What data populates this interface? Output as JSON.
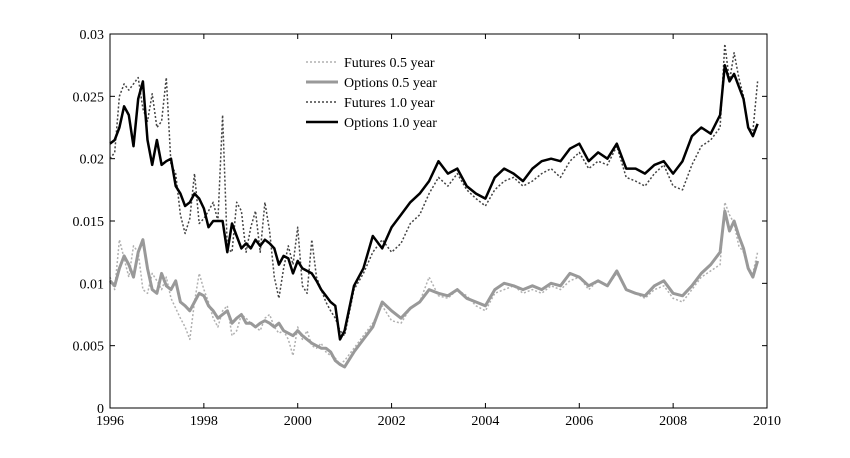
{
  "chart_data": {
    "type": "line",
    "title": "",
    "xlabel": "",
    "ylabel": "",
    "xlim": [
      1996,
      2010
    ],
    "ylim": [
      0,
      0.03
    ],
    "xticks": [
      "1996",
      "1998",
      "2000",
      "2002",
      "2004",
      "2006",
      "2008",
      "2010"
    ],
    "yticks": [
      "0",
      "0.005",
      "0.01",
      "0.015",
      "0.02",
      "0.025",
      "0.03"
    ],
    "grid": false,
    "legend_position": "top-center",
    "series": [
      {
        "name": "Futures 0.5 year",
        "color": "#b0b0b0",
        "dash": "2,2",
        "width": 1.5,
        "x": [
          1996.0,
          1996.1,
          1996.2,
          1996.3,
          1996.4,
          1996.5,
          1996.6,
          1996.7,
          1996.8,
          1996.9,
          1997.0,
          1997.1,
          1997.2,
          1997.3,
          1997.4,
          1997.5,
          1997.6,
          1997.7,
          1997.8,
          1997.9,
          1998.0,
          1998.1,
          1998.2,
          1998.3,
          1998.4,
          1998.5,
          1998.6,
          1998.7,
          1998.8,
          1998.9,
          1999.0,
          1999.1,
          1999.2,
          1999.3,
          1999.4,
          1999.5,
          1999.6,
          1999.7,
          1999.8,
          1999.9,
          2000.0,
          2000.1,
          2000.2,
          2000.3,
          2000.4,
          2000.5,
          2000.6,
          2000.7,
          2000.8,
          2000.9,
          2001.0,
          2001.2,
          2001.4,
          2001.6,
          2001.8,
          2002.0,
          2002.2,
          2002.4,
          2002.6,
          2002.8,
          2003.0,
          2003.2,
          2003.4,
          2003.6,
          2003.8,
          2004.0,
          2004.2,
          2004.4,
          2004.6,
          2004.8,
          2005.0,
          2005.2,
          2005.4,
          2005.6,
          2005.8,
          2006.0,
          2006.2,
          2006.4,
          2006.6,
          2006.8,
          2007.0,
          2007.2,
          2007.4,
          2007.6,
          2007.8,
          2008.0,
          2008.2,
          2008.4,
          2008.6,
          2008.8,
          2009.0,
          2009.1,
          2009.2,
          2009.3,
          2009.4,
          2009.5,
          2009.6,
          2009.7,
          2009.8
        ],
        "y": [
          0.0105,
          0.0095,
          0.0135,
          0.012,
          0.0105,
          0.013,
          0.0125,
          0.0095,
          0.0092,
          0.0108,
          0.0102,
          0.0095,
          0.0105,
          0.0088,
          0.008,
          0.0072,
          0.0065,
          0.0055,
          0.0085,
          0.0108,
          0.0095,
          0.0085,
          0.0072,
          0.0065,
          0.0078,
          0.0082,
          0.0058,
          0.0062,
          0.0075,
          0.0072,
          0.0068,
          0.0065,
          0.0062,
          0.0072,
          0.0075,
          0.0065,
          0.006,
          0.0062,
          0.0055,
          0.0042,
          0.0065,
          0.0055,
          0.0062,
          0.005,
          0.0048,
          0.0052,
          0.0045,
          0.0042,
          0.004,
          0.0035,
          0.0038,
          0.0048,
          0.0058,
          0.0068,
          0.0082,
          0.007,
          0.0068,
          0.008,
          0.0085,
          0.0105,
          0.009,
          0.0088,
          0.0095,
          0.009,
          0.0082,
          0.0078,
          0.0092,
          0.0095,
          0.0098,
          0.0092,
          0.0095,
          0.0092,
          0.0098,
          0.0095,
          0.0102,
          0.0105,
          0.0095,
          0.0102,
          0.0098,
          0.0108,
          0.0095,
          0.0092,
          0.0088,
          0.0095,
          0.0098,
          0.0088,
          0.0085,
          0.0095,
          0.0105,
          0.011,
          0.0115,
          0.0165,
          0.0155,
          0.0148,
          0.013,
          0.0125,
          0.0112,
          0.0108,
          0.0125
        ]
      },
      {
        "name": "Options 0.5 year",
        "color": "#999999",
        "dash": "",
        "width": 3,
        "x": [
          1996.0,
          1996.1,
          1996.2,
          1996.3,
          1996.4,
          1996.5,
          1996.6,
          1996.7,
          1996.8,
          1996.9,
          1997.0,
          1997.1,
          1997.2,
          1997.3,
          1997.4,
          1997.5,
          1997.6,
          1997.7,
          1997.8,
          1997.9,
          1998.0,
          1998.1,
          1998.2,
          1998.3,
          1998.4,
          1998.5,
          1998.6,
          1998.7,
          1998.8,
          1998.9,
          1999.0,
          1999.1,
          1999.2,
          1999.3,
          1999.4,
          1999.5,
          1999.6,
          1999.7,
          1999.8,
          1999.9,
          2000.0,
          2000.1,
          2000.2,
          2000.3,
          2000.4,
          2000.5,
          2000.6,
          2000.7,
          2000.8,
          2000.9,
          2001.0,
          2001.2,
          2001.4,
          2001.6,
          2001.8,
          2002.0,
          2002.2,
          2002.4,
          2002.6,
          2002.8,
          2003.0,
          2003.2,
          2003.4,
          2003.6,
          2003.8,
          2004.0,
          2004.2,
          2004.4,
          2004.6,
          2004.8,
          2005.0,
          2005.2,
          2005.4,
          2005.6,
          2005.8,
          2006.0,
          2006.2,
          2006.4,
          2006.6,
          2006.8,
          2007.0,
          2007.2,
          2007.4,
          2007.6,
          2007.8,
          2008.0,
          2008.2,
          2008.4,
          2008.6,
          2008.8,
          2009.0,
          2009.1,
          2009.2,
          2009.3,
          2009.4,
          2009.5,
          2009.6,
          2009.7,
          2009.8
        ],
        "y": [
          0.0102,
          0.0098,
          0.0112,
          0.0122,
          0.0115,
          0.0105,
          0.0125,
          0.0135,
          0.0112,
          0.0095,
          0.0092,
          0.0108,
          0.0098,
          0.0095,
          0.0102,
          0.0085,
          0.0082,
          0.0078,
          0.0085,
          0.0092,
          0.009,
          0.0082,
          0.0078,
          0.0072,
          0.0075,
          0.0078,
          0.0068,
          0.0072,
          0.0075,
          0.0068,
          0.0068,
          0.0065,
          0.0068,
          0.007,
          0.0068,
          0.0065,
          0.0068,
          0.0062,
          0.006,
          0.0058,
          0.0062,
          0.0058,
          0.0055,
          0.0052,
          0.005,
          0.0048,
          0.0048,
          0.0045,
          0.0038,
          0.0035,
          0.0033,
          0.0045,
          0.0055,
          0.0065,
          0.0085,
          0.0078,
          0.0072,
          0.008,
          0.0085,
          0.0095,
          0.0092,
          0.009,
          0.0095,
          0.0088,
          0.0085,
          0.0082,
          0.0095,
          0.01,
          0.0098,
          0.0095,
          0.0098,
          0.0095,
          0.01,
          0.0098,
          0.0108,
          0.0105,
          0.0098,
          0.0102,
          0.0098,
          0.011,
          0.0095,
          0.0092,
          0.009,
          0.0098,
          0.0102,
          0.0092,
          0.009,
          0.0098,
          0.0108,
          0.0115,
          0.0125,
          0.0158,
          0.0142,
          0.015,
          0.0138,
          0.0128,
          0.0112,
          0.0105,
          0.0118
        ]
      },
      {
        "name": "Futures 1.0 year",
        "color": "#444444",
        "dash": "2,2",
        "width": 1.5,
        "x": [
          1996.0,
          1996.1,
          1996.2,
          1996.3,
          1996.4,
          1996.5,
          1996.6,
          1996.7,
          1996.8,
          1996.9,
          1997.0,
          1997.1,
          1997.2,
          1997.3,
          1997.4,
          1997.5,
          1997.6,
          1997.7,
          1997.8,
          1997.9,
          1998.0,
          1998.1,
          1998.2,
          1998.3,
          1998.4,
          1998.5,
          1998.6,
          1998.7,
          1998.8,
          1998.9,
          1999.0,
          1999.1,
          1999.2,
          1999.3,
          1999.4,
          1999.5,
          1999.6,
          1999.7,
          1999.8,
          1999.9,
          2000.0,
          2000.1,
          2000.2,
          2000.3,
          2000.4,
          2000.5,
          2000.6,
          2000.7,
          2000.8,
          2000.9,
          2001.0,
          2001.2,
          2001.4,
          2001.6,
          2001.8,
          2002.0,
          2002.2,
          2002.4,
          2002.6,
          2002.8,
          2003.0,
          2003.2,
          2003.4,
          2003.6,
          2003.8,
          2004.0,
          2004.2,
          2004.4,
          2004.6,
          2004.8,
          2005.0,
          2005.2,
          2005.4,
          2005.6,
          2005.8,
          2006.0,
          2006.2,
          2006.4,
          2006.6,
          2006.8,
          2007.0,
          2007.2,
          2007.4,
          2007.6,
          2007.8,
          2008.0,
          2008.2,
          2008.4,
          2008.6,
          2008.8,
          2009.0,
          2009.1,
          2009.2,
          2009.3,
          2009.4,
          2009.5,
          2009.6,
          2009.7,
          2009.8
        ],
        "y": [
          0.02,
          0.0205,
          0.025,
          0.026,
          0.0255,
          0.026,
          0.0265,
          0.024,
          0.023,
          0.0252,
          0.0225,
          0.023,
          0.0265,
          0.0195,
          0.0188,
          0.0155,
          0.014,
          0.0152,
          0.0188,
          0.0148,
          0.0152,
          0.0158,
          0.0165,
          0.015,
          0.0235,
          0.0128,
          0.0125,
          0.0165,
          0.0158,
          0.0125,
          0.0145,
          0.0158,
          0.0125,
          0.0165,
          0.0142,
          0.0105,
          0.0088,
          0.0112,
          0.013,
          0.0115,
          0.0145,
          0.0098,
          0.0092,
          0.0135,
          0.0105,
          0.0095,
          0.0085,
          0.0078,
          0.0072,
          0.0062,
          0.0058,
          0.0095,
          0.0108,
          0.0125,
          0.0135,
          0.0125,
          0.0132,
          0.0148,
          0.0155,
          0.0172,
          0.0185,
          0.0178,
          0.0188,
          0.0175,
          0.0168,
          0.0162,
          0.0175,
          0.0182,
          0.0185,
          0.0178,
          0.0182,
          0.0188,
          0.0192,
          0.0185,
          0.0198,
          0.0205,
          0.0192,
          0.0198,
          0.0195,
          0.021,
          0.0185,
          0.0182,
          0.0178,
          0.0188,
          0.0195,
          0.0178,
          0.0175,
          0.0195,
          0.021,
          0.0215,
          0.0225,
          0.0292,
          0.0262,
          0.0285,
          0.0265,
          0.025,
          0.0225,
          0.0222,
          0.0262
        ]
      },
      {
        "name": "Options 1.0 year",
        "color": "#000000",
        "dash": "",
        "width": 2.5,
        "x": [
          1996.0,
          1996.1,
          1996.2,
          1996.3,
          1996.4,
          1996.5,
          1996.6,
          1996.7,
          1996.8,
          1996.9,
          1997.0,
          1997.1,
          1997.2,
          1997.3,
          1997.4,
          1997.5,
          1997.6,
          1997.7,
          1997.8,
          1997.9,
          1998.0,
          1998.1,
          1998.2,
          1998.3,
          1998.4,
          1998.5,
          1998.6,
          1998.7,
          1998.8,
          1998.9,
          1999.0,
          1999.1,
          1999.2,
          1999.3,
          1999.4,
          1999.5,
          1999.6,
          1999.7,
          1999.8,
          1999.9,
          2000.0,
          2000.1,
          2000.2,
          2000.3,
          2000.4,
          2000.5,
          2000.6,
          2000.7,
          2000.8,
          2000.9,
          2001.0,
          2001.2,
          2001.4,
          2001.6,
          2001.8,
          2002.0,
          2002.2,
          2002.4,
          2002.6,
          2002.8,
          2003.0,
          2003.2,
          2003.4,
          2003.6,
          2003.8,
          2004.0,
          2004.2,
          2004.4,
          2004.6,
          2004.8,
          2005.0,
          2005.2,
          2005.4,
          2005.6,
          2005.8,
          2006.0,
          2006.2,
          2006.4,
          2006.6,
          2006.8,
          2007.0,
          2007.2,
          2007.4,
          2007.6,
          2007.8,
          2008.0,
          2008.2,
          2008.4,
          2008.6,
          2008.8,
          2009.0,
          2009.1,
          2009.2,
          2009.3,
          2009.4,
          2009.5,
          2009.6,
          2009.7,
          2009.8
        ],
        "y": [
          0.0212,
          0.0215,
          0.0225,
          0.0242,
          0.0235,
          0.021,
          0.0248,
          0.0262,
          0.0215,
          0.0195,
          0.0215,
          0.0195,
          0.0198,
          0.02,
          0.0178,
          0.0172,
          0.0162,
          0.0165,
          0.0172,
          0.0168,
          0.016,
          0.0145,
          0.015,
          0.015,
          0.015,
          0.0125,
          0.0148,
          0.0138,
          0.0128,
          0.0132,
          0.0128,
          0.0135,
          0.013,
          0.0135,
          0.0132,
          0.0128,
          0.0115,
          0.0122,
          0.012,
          0.0108,
          0.0118,
          0.0112,
          0.011,
          0.0108,
          0.0102,
          0.0095,
          0.009,
          0.0085,
          0.0082,
          0.0055,
          0.0062,
          0.0098,
          0.0112,
          0.0138,
          0.0128,
          0.0145,
          0.0155,
          0.0165,
          0.0172,
          0.0182,
          0.0198,
          0.0188,
          0.0192,
          0.0178,
          0.0172,
          0.0168,
          0.0185,
          0.0192,
          0.0188,
          0.0182,
          0.0192,
          0.0198,
          0.02,
          0.0198,
          0.0208,
          0.0212,
          0.0198,
          0.0205,
          0.02,
          0.0212,
          0.0192,
          0.0192,
          0.0188,
          0.0195,
          0.0198,
          0.0188,
          0.0198,
          0.0218,
          0.0225,
          0.022,
          0.0235,
          0.0275,
          0.0262,
          0.0268,
          0.0258,
          0.0248,
          0.0225,
          0.0218,
          0.0228
        ]
      }
    ]
  }
}
